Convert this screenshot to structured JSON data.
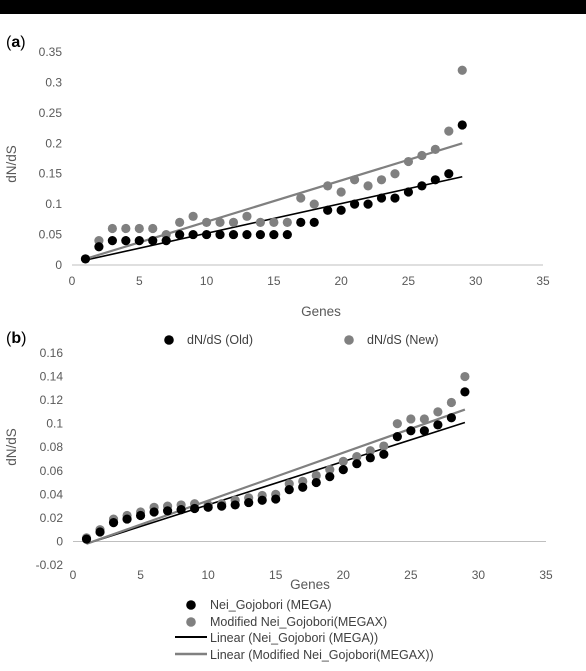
{
  "chart_data": [
    {
      "panel_label": "(a)",
      "type": "scatter",
      "xlabel": "Genes",
      "ylabel": "dN/dS",
      "xlim": [
        0,
        35
      ],
      "ylim": [
        0,
        0.35
      ],
      "xticks": [
        0,
        5,
        10,
        15,
        20,
        25,
        30,
        35
      ],
      "yticks": [
        0,
        0.05,
        0.1,
        0.15,
        0.2,
        0.25,
        0.3,
        0.35
      ],
      "ytick_labels": [
        "0",
        "0.05",
        "0.1",
        "0.15",
        "0.2",
        "0.25",
        "0.3",
        "0.35"
      ],
      "grid": false,
      "legend_position": "bottom",
      "series": [
        {
          "name": "dN/dS (Old)",
          "color": "#000000",
          "marker": "circle",
          "x": [
            1,
            2,
            3,
            4,
            5,
            6,
            7,
            8,
            9,
            10,
            11,
            12,
            13,
            14,
            15,
            16,
            17,
            18,
            19,
            20,
            21,
            22,
            23,
            24,
            25,
            26,
            27,
            28,
            29
          ],
          "y": [
            0.01,
            0.03,
            0.04,
            0.04,
            0.04,
            0.04,
            0.04,
            0.05,
            0.05,
            0.05,
            0.05,
            0.05,
            0.05,
            0.05,
            0.05,
            0.05,
            0.07,
            0.07,
            0.09,
            0.09,
            0.1,
            0.1,
            0.11,
            0.11,
            0.12,
            0.13,
            0.14,
            0.15,
            0.23
          ]
        },
        {
          "name": "dN/dS (New)",
          "color": "#808080",
          "marker": "circle",
          "x": [
            1,
            2,
            3,
            4,
            5,
            6,
            7,
            8,
            9,
            10,
            11,
            12,
            13,
            14,
            15,
            16,
            17,
            18,
            19,
            20,
            21,
            22,
            23,
            24,
            25,
            26,
            27,
            28,
            29
          ],
          "y": [
            0.01,
            0.04,
            0.06,
            0.06,
            0.06,
            0.06,
            0.05,
            0.07,
            0.08,
            0.07,
            0.07,
            0.07,
            0.08,
            0.07,
            0.07,
            0.07,
            0.11,
            0.1,
            0.13,
            0.12,
            0.14,
            0.13,
            0.14,
            0.15,
            0.17,
            0.18,
            0.19,
            0.22,
            0.32
          ]
        }
      ],
      "trendlines": [
        {
          "color": "#000000",
          "x": [
            1,
            29
          ],
          "y": [
            0.008,
            0.145
          ]
        },
        {
          "color": "#808080",
          "x": [
            1,
            29
          ],
          "y": [
            0.01,
            0.2
          ]
        }
      ]
    },
    {
      "panel_label": "(b)",
      "type": "scatter",
      "xlabel": "Genes",
      "ylabel": "dN/dS",
      "xlim": [
        0,
        35
      ],
      "ylim": [
        -0.02,
        0.16
      ],
      "xticks": [
        0,
        5,
        10,
        15,
        20,
        25,
        30,
        35
      ],
      "yticks": [
        -0.02,
        0,
        0.02,
        0.04,
        0.06,
        0.08,
        0.1,
        0.12,
        0.14,
        0.16
      ],
      "ytick_labels": [
        "-0.02",
        "0",
        "0.02",
        "0.04",
        "0.06",
        "0.08",
        "0.1",
        "0.12",
        "0.14",
        "0.16"
      ],
      "grid": false,
      "legend_position": "bottom",
      "series": [
        {
          "name": "Nei_Gojobori (MEGA)",
          "color": "#000000",
          "marker": "circle",
          "x": [
            1,
            2,
            3,
            4,
            5,
            6,
            7,
            8,
            9,
            10,
            11,
            12,
            13,
            14,
            15,
            16,
            17,
            18,
            19,
            20,
            21,
            22,
            23,
            24,
            25,
            26,
            27,
            28,
            29
          ],
          "y": [
            0.002,
            0.008,
            0.016,
            0.019,
            0.022,
            0.025,
            0.026,
            0.027,
            0.028,
            0.029,
            0.03,
            0.031,
            0.033,
            0.035,
            0.036,
            0.044,
            0.046,
            0.05,
            0.055,
            0.061,
            0.066,
            0.071,
            0.074,
            0.089,
            0.094,
            0.094,
            0.099,
            0.105,
            0.127
          ]
        },
        {
          "name": "Modified Nei_Gojobori(MEGAX)",
          "color": "#808080",
          "marker": "circle",
          "x": [
            1,
            2,
            3,
            4,
            5,
            6,
            7,
            8,
            9,
            10,
            11,
            12,
            13,
            14,
            15,
            16,
            17,
            18,
            19,
            20,
            21,
            22,
            23,
            24,
            25,
            26,
            27,
            28,
            29
          ],
          "y": [
            0.003,
            0.01,
            0.019,
            0.022,
            0.025,
            0.029,
            0.03,
            0.031,
            0.032,
            0.031,
            0.032,
            0.035,
            0.037,
            0.039,
            0.04,
            0.049,
            0.051,
            0.056,
            0.061,
            0.068,
            0.072,
            0.077,
            0.081,
            0.1,
            0.104,
            0.104,
            0.11,
            0.118,
            0.14
          ]
        }
      ],
      "trendlines": [
        {
          "name": "Linear (Nei_Gojobori (MEGA))",
          "color": "#000000",
          "x": [
            1,
            29
          ],
          "y": [
            -0.002,
            0.101
          ]
        },
        {
          "name": "Linear (Modified Nei_Gojobori(MEGAX))",
          "color": "#808080",
          "x": [
            1,
            29
          ],
          "y": [
            -0.002,
            0.112
          ]
        }
      ]
    }
  ]
}
